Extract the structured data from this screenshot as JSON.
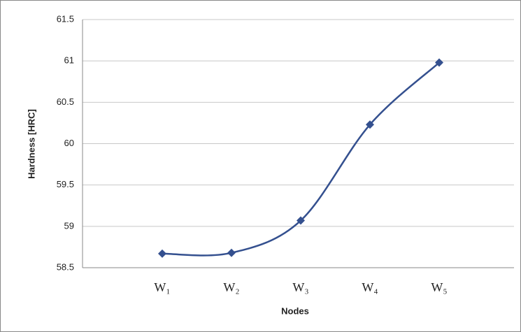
{
  "chart_data": {
    "type": "line",
    "categories": [
      "W₁",
      "W₂",
      "W₃",
      "W₄",
      "W₅"
    ],
    "values": [
      58.67,
      58.68,
      59.07,
      60.23,
      60.98
    ],
    "color": "#34508f",
    "xlabel": "Nodes",
    "ylabel": "Hardness [HRC]",
    "ylim": [
      58.5,
      61.5
    ],
    "yticks": [
      58.5,
      59,
      59.5,
      60,
      60.5,
      61,
      61.5
    ],
    "grid": true,
    "smooth": true,
    "marker": "diamond"
  }
}
